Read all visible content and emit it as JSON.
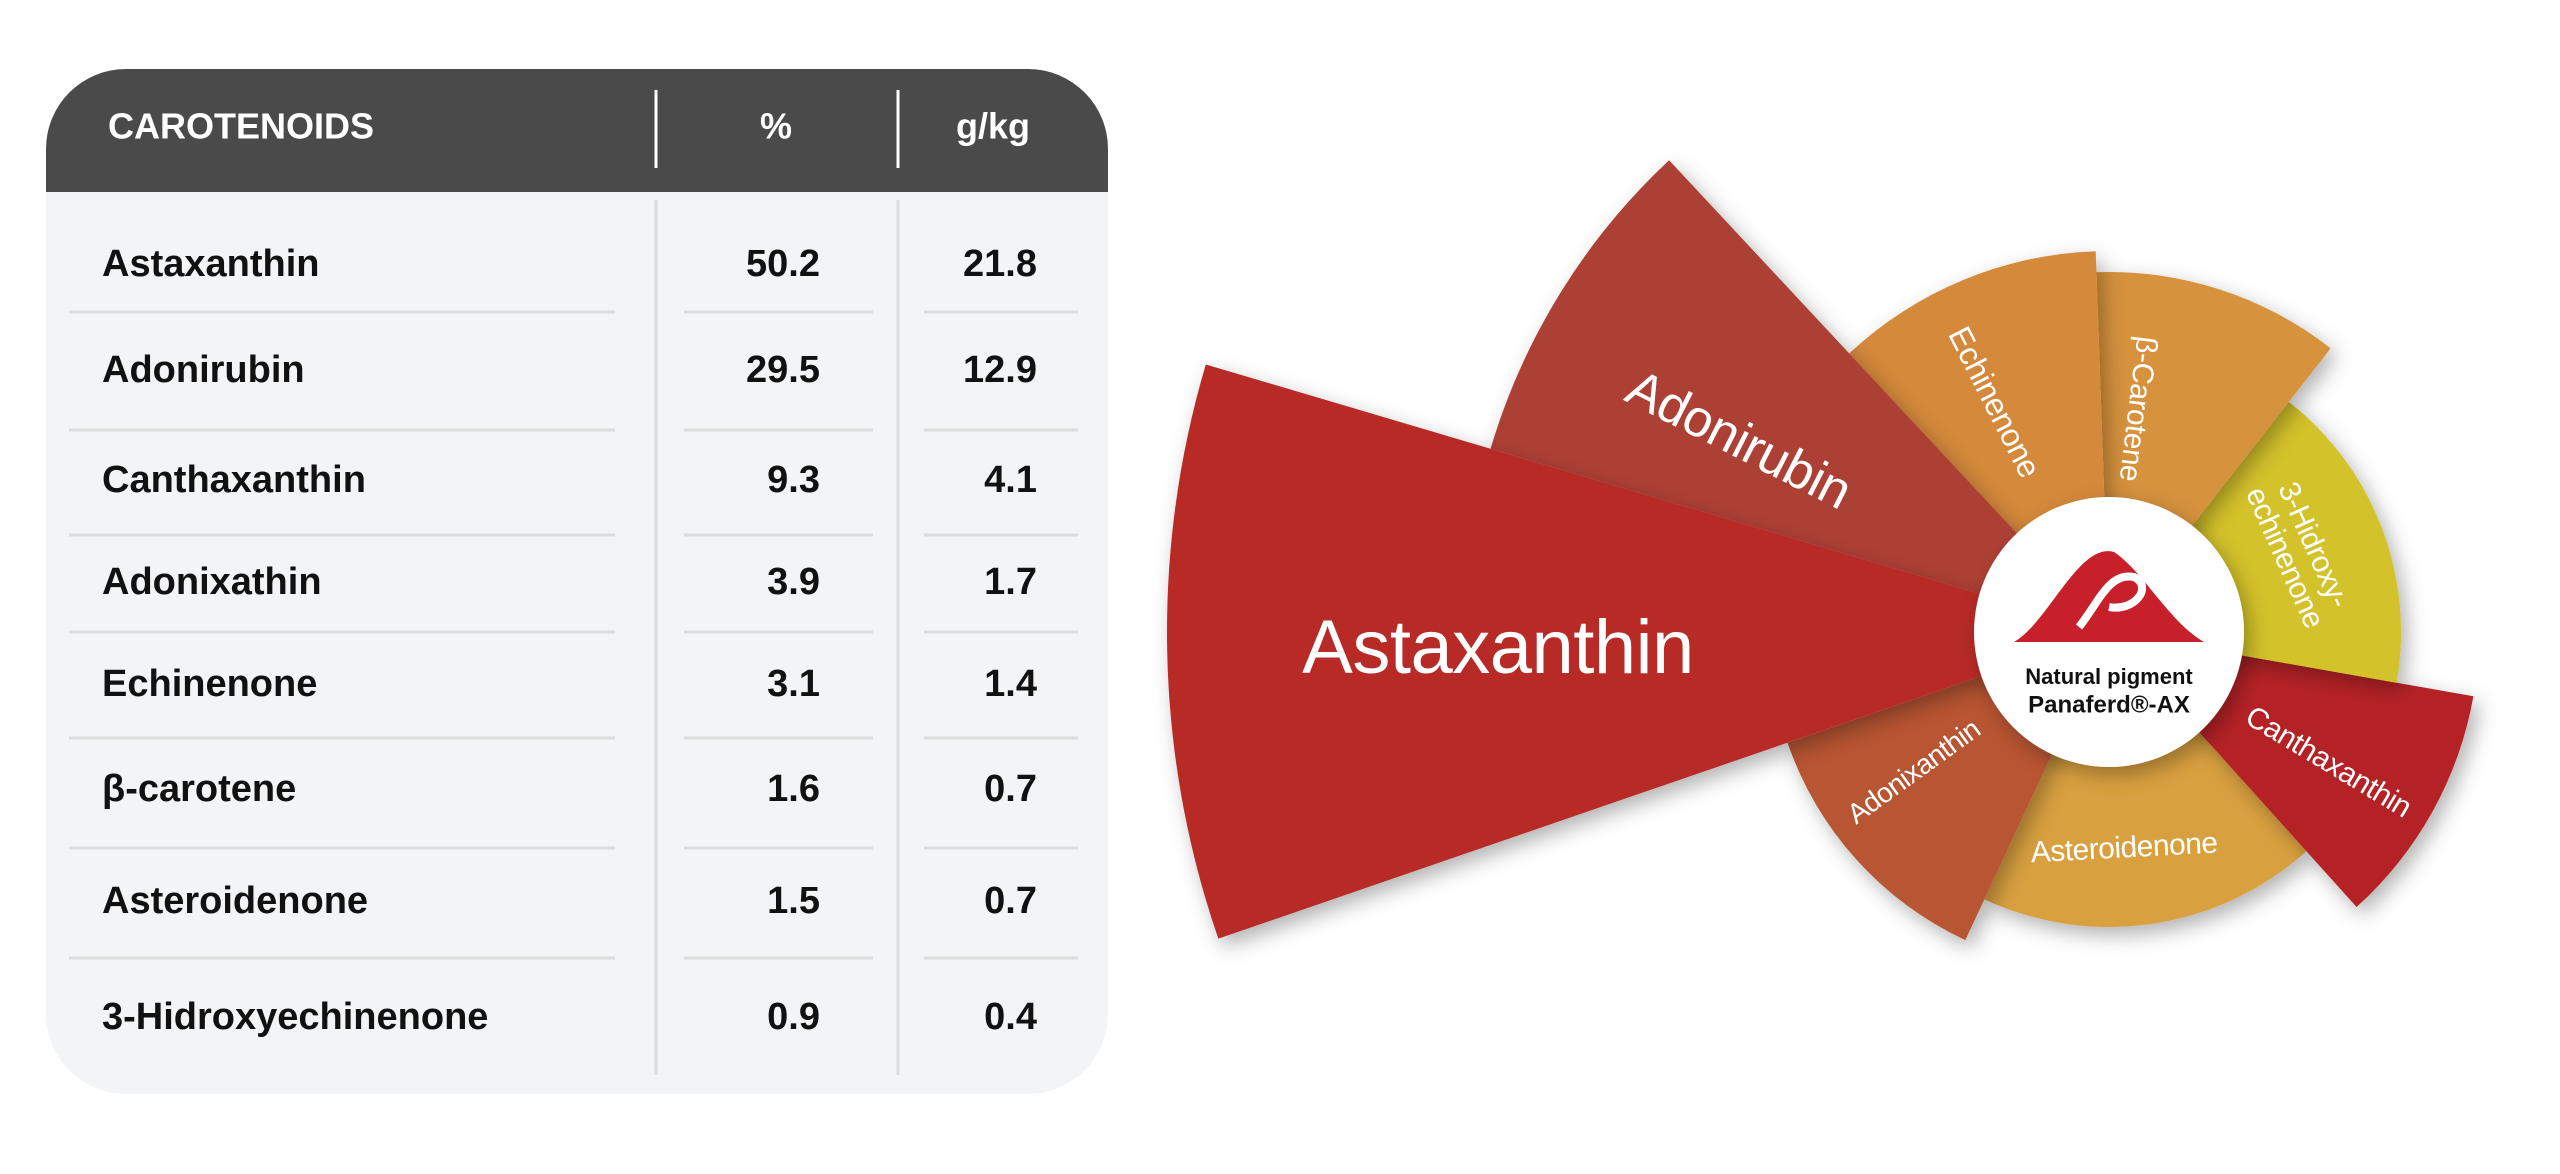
{
  "table": {
    "header": [
      "CAROTENOIDS",
      "%",
      "g/kg"
    ],
    "rows": [
      [
        "Astaxanthin",
        50.2,
        21.8
      ],
      [
        "Adonirubin",
        29.5,
        12.9
      ],
      [
        "Canthaxanthin",
        9.3,
        4.1
      ],
      [
        "Adonixathin",
        3.9,
        1.7
      ],
      [
        "Echinenone",
        3.1,
        1.4
      ],
      [
        "β-carotene",
        1.6,
        0.7
      ],
      [
        "Asteroidenone",
        1.5,
        0.7
      ],
      [
        "3-Hidroxyechinenone",
        0.9,
        0.4
      ]
    ]
  },
  "wheel": {
    "segments": [
      {
        "lines": [
          "Astaxanthin"
        ]
      },
      {
        "lines": [
          "Adonirubin"
        ]
      },
      {
        "lines": [
          "Echinenone"
        ]
      },
      {
        "lines": [
          "β-Carotene"
        ]
      },
      {
        "lines": [
          "3-Hidroxy-",
          "echinenone"
        ]
      },
      {
        "lines": [
          "Canthaxanthin"
        ]
      },
      {
        "lines": [
          "Asteroidenone"
        ]
      },
      {
        "lines": [
          "Adonixanthin"
        ]
      }
    ],
    "center": {
      "line1": "Natural pigment",
      "line2": "Panaferd®-AX"
    }
  }
}
